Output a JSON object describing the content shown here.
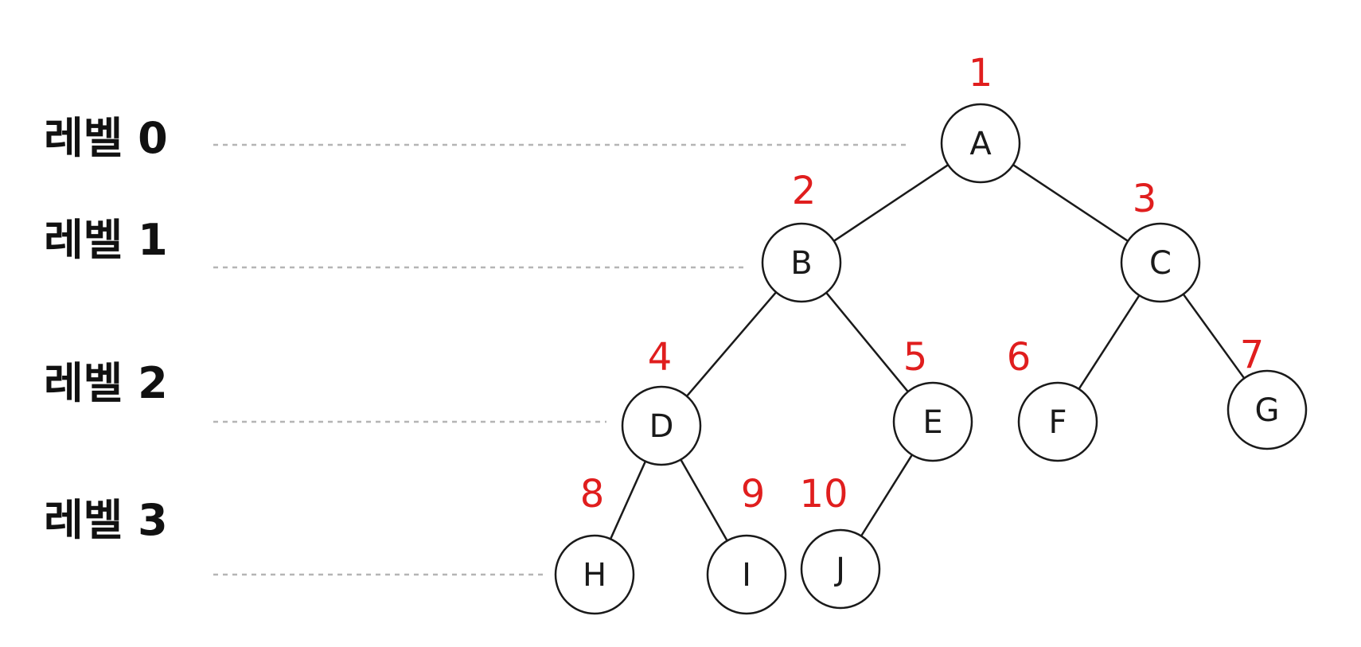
{
  "colors": {
    "number": "#e01e1e",
    "node_stroke": "#1a1a1a",
    "guide": "#b5b5b5"
  },
  "levels": [
    {
      "id": "0",
      "label": "레벨 0"
    },
    {
      "id": "1",
      "label": "레벨 1"
    },
    {
      "id": "2",
      "label": "레벨 2"
    },
    {
      "id": "3",
      "label": "레벨 3"
    }
  ],
  "nodes": [
    {
      "id": "A",
      "label": "A",
      "number": "1",
      "level": 0
    },
    {
      "id": "B",
      "label": "B",
      "number": "2",
      "level": 1
    },
    {
      "id": "C",
      "label": "C",
      "number": "3",
      "level": 1
    },
    {
      "id": "D",
      "label": "D",
      "number": "4",
      "level": 2
    },
    {
      "id": "E",
      "label": "E",
      "number": "5",
      "level": 2
    },
    {
      "id": "F",
      "label": "F",
      "number": "6",
      "level": 2
    },
    {
      "id": "G",
      "label": "G",
      "number": "7",
      "level": 2
    },
    {
      "id": "H",
      "label": "H",
      "number": "8",
      "level": 3
    },
    {
      "id": "I",
      "label": "I",
      "number": "9",
      "level": 3
    },
    {
      "id": "J",
      "label": "J",
      "number": "10",
      "level": 3
    }
  ],
  "edges": [
    [
      "A",
      "B"
    ],
    [
      "A",
      "C"
    ],
    [
      "B",
      "D"
    ],
    [
      "B",
      "E"
    ],
    [
      "C",
      "F"
    ],
    [
      "C",
      "G"
    ],
    [
      "D",
      "H"
    ],
    [
      "D",
      "I"
    ],
    [
      "E",
      "J"
    ]
  ]
}
